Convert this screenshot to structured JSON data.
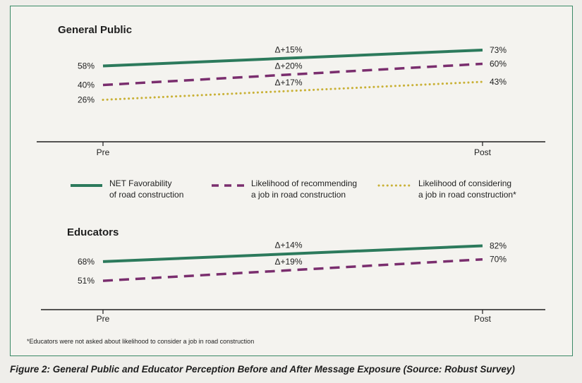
{
  "caption": "Figure 2: General Public and Educator Perception Before and After Message Exposure (Source: Robust Survey)",
  "footnote": "*Educators were not asked about likelihood to consider a job in road construction",
  "legend": [
    {
      "key": "net",
      "line1": "NET Favorability",
      "line2": "of road construction"
    },
    {
      "key": "recommend",
      "line1": "Likelihood of recommending",
      "line2": "a job in road construction"
    },
    {
      "key": "consider",
      "line1": "Likelihood of considering",
      "line2": "a job in road construction*"
    }
  ],
  "colors": {
    "net": "#2c7a5c",
    "recommend": "#7a2e6e",
    "consider": "#c9b137",
    "axis": "#1e1e1e"
  },
  "chart_data": [
    {
      "type": "line",
      "title": "General Public",
      "categories": [
        "Pre",
        "Post"
      ],
      "series": [
        {
          "key": "net",
          "values": [
            58,
            73
          ],
          "labels": [
            "58%",
            "73%"
          ],
          "delta": "Δ+15%"
        },
        {
          "key": "recommend",
          "values": [
            40,
            60
          ],
          "labels": [
            "40%",
            "60%"
          ],
          "delta": "Δ+20%"
        },
        {
          "key": "consider",
          "values": [
            26,
            43
          ],
          "labels": [
            "26%",
            "43%"
          ],
          "delta": "Δ+17%"
        }
      ]
    },
    {
      "type": "line",
      "title": "Educators",
      "categories": [
        "Pre",
        "Post"
      ],
      "series": [
        {
          "key": "net",
          "values": [
            68,
            82
          ],
          "labels": [
            "68%",
            "82%"
          ],
          "delta": "Δ+14%"
        },
        {
          "key": "recommend",
          "values": [
            51,
            70
          ],
          "labels": [
            "51%",
            "70%"
          ],
          "delta": "Δ+19%"
        }
      ]
    }
  ]
}
